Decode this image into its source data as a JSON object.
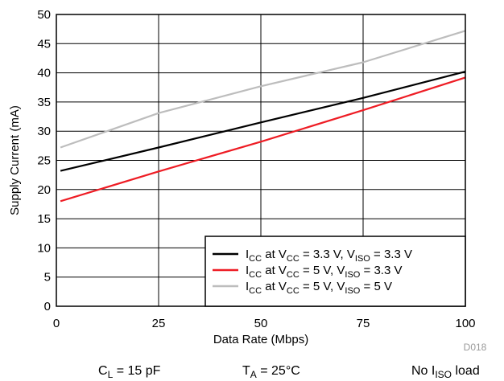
{
  "chart_data": {
    "type": "line",
    "xlabel": "Data Rate (Mbps)",
    "ylabel": "Supply Current (mA)",
    "xlim": [
      0,
      100
    ],
    "ylim": [
      0,
      50
    ],
    "x_ticks": [
      0,
      25,
      50,
      75,
      100
    ],
    "y_ticks": [
      0,
      5,
      10,
      15,
      20,
      25,
      30,
      35,
      40,
      45,
      50
    ],
    "grid": true,
    "legend_position": "bottom-right",
    "series": [
      {
        "name": "ICC at VCC = 3.3 V, VISO = 3.3 V",
        "legend": {
          "a": "I",
          "a_sub": "CC",
          "b": " at V",
          "b_sub": "CC",
          "c": " = 3.3 V, V",
          "c_sub": "ISO",
          "d": " = 3.3 V"
        },
        "color": "#000000",
        "x": [
          1,
          25,
          50,
          75,
          100
        ],
        "y": [
          23.2,
          27.2,
          31.5,
          35.7,
          40.2
        ]
      },
      {
        "name": "ICC at VCC = 5 V, VISO = 3.3 V",
        "legend": {
          "a": "I",
          "a_sub": "CC",
          "b": " at V",
          "b_sub": "CC",
          "c": " = 5 V, V",
          "c_sub": "ISO",
          "d": " = 3.3 V"
        },
        "color": "#ee1c24",
        "x": [
          1,
          25,
          50,
          75,
          100
        ],
        "y": [
          18.0,
          23.1,
          28.2,
          33.6,
          39.2
        ]
      },
      {
        "name": "ICC at VCC = 5 V, VISO = 5 V",
        "legend": {
          "a": "I",
          "a_sub": "CC",
          "b": " at V",
          "b_sub": "CC",
          "c": " = 5 V, V",
          "c_sub": "ISO",
          "d": " = 5 V"
        },
        "color": "#bdbdbd",
        "x": [
          1,
          25,
          50,
          75,
          100
        ],
        "y": [
          27.2,
          33.1,
          37.7,
          41.8,
          47.2
        ]
      }
    ],
    "annotation": "D018"
  },
  "conditions": {
    "cl": {
      "main": "C",
      "sub": "L",
      "rest": " = 15 pF"
    },
    "ta": {
      "main": "T",
      "sub": "A",
      "rest": " = 25°C"
    },
    "load": {
      "pre": "No I",
      "sub": "ISO",
      "rest": " load"
    }
  }
}
